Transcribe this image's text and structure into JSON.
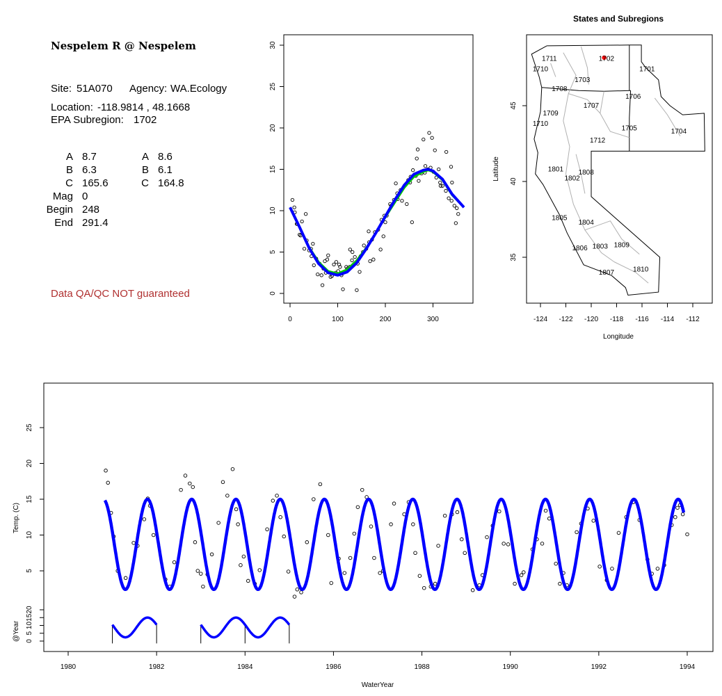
{
  "info": {
    "site_title": "Nespelem R @ Nespelem",
    "site_label": "Site:",
    "site": "51A070",
    "agency_label": "Agency:",
    "agency": "WA.Ecology",
    "location_label": "Location:",
    "location": "-118.9814 , 48.1668",
    "subregion_label": "EPA Subregion:",
    "subregion": "1702",
    "params_left": [
      {
        "name": "A",
        "value": "8.7"
      },
      {
        "name": "B",
        "value": "6.3"
      },
      {
        "name": "C",
        "value": "165.6"
      },
      {
        "name": "Mag",
        "value": "0"
      },
      {
        "name": "Begin",
        "value": "248"
      },
      {
        "name": "End",
        "value": "291.4"
      }
    ],
    "params_right": [
      {
        "name": "A",
        "value": "8.6"
      },
      {
        "name": "B",
        "value": "6.1"
      },
      {
        "name": "C",
        "value": "164.8"
      }
    ],
    "qa_note": "Data QA/QC NOT guaranteed"
  },
  "colors": {
    "fit": "#0000ff",
    "fit_alt": "#00cc00",
    "site_marker": "#ff0000",
    "qa_text": "#b03030",
    "boundary": "#000000",
    "subregion_lines": "#b0b0b0"
  },
  "chart_data": [
    {
      "type": "scatter",
      "title": "",
      "xlabel": "",
      "ylabel": "",
      "xlim": [
        0,
        365
      ],
      "ylim": [
        0,
        30
      ],
      "x_ticks": [
        0,
        100,
        200,
        300
      ],
      "y_ticks": [
        0,
        5,
        10,
        15,
        20,
        25,
        30
      ],
      "grid": false,
      "series": [
        {
          "kind": "points",
          "x": [
            5,
            10,
            15,
            20,
            25,
            30,
            35,
            40,
            45,
            50,
            55,
            62,
            66,
            70,
            75,
            80,
            85,
            92,
            97,
            101,
            105,
            109,
            113,
            120,
            125,
            130,
            136,
            142,
            148,
            155,
            160,
            166,
            172,
            178,
            185,
            192,
            198,
            203,
            212,
            218,
            225,
            232,
            240,
            248,
            253,
            258,
            264,
            270,
            276,
            283,
            289,
            295,
            301,
            307,
            315,
            320,
            327,
            333,
            339,
            345,
            350,
            353,
            9,
            22,
            33,
            48,
            58,
            68,
            78,
            88,
            103,
            111,
            118,
            131,
            140,
            153,
            165,
            175,
            190,
            200,
            210,
            222,
            235,
            245,
            256,
            268,
            280,
            292,
            304,
            316,
            328,
            340,
            348,
            14,
            44,
            73,
            96,
            108,
            126,
            146,
            168,
            196,
            226,
            252,
            266,
            284,
            298,
            312,
            338
          ],
          "y": [
            11.3,
            9.8,
            8.4,
            7.1,
            8.7,
            5.4,
            6.4,
            5.2,
            4.5,
            3.4,
            4.2,
            3.6,
            2.2,
            3.0,
            2.5,
            4.6,
            2.0,
            3.5,
            3.8,
            2.7,
            3.2,
            2.4,
            2.6,
            3.0,
            3.2,
            4.0,
            4.4,
            3.6,
            4.5,
            5.8,
            5.4,
            6.2,
            6.5,
            7.4,
            7.7,
            8.9,
            9.4,
            9.4,
            10.6,
            11.3,
            12.1,
            12.5,
            13.0,
            13.7,
            14.1,
            14.9,
            14.2,
            13.6,
            14.5,
            14.6,
            15.0,
            15.2,
            14.7,
            14.0,
            13.4,
            13.0,
            12.4,
            11.5,
            11.2,
            10.6,
            10.3,
            9.6,
            10.4,
            7.0,
            9.6,
            6.0,
            2.3,
            1.0,
            4.1,
            2.1,
            3.5,
            0.5,
            3.2,
            5.0,
            0.4,
            5.0,
            7.5,
            4.1,
            5.3,
            8.6,
            10.8,
            13.3,
            11.2,
            10.8,
            8.6,
            17.4,
            18.6,
            19.4,
            17.3,
            13.0,
            17.1,
            13.4,
            8.5,
            8.4,
            5.4,
            3.9,
            2.5,
            2.2,
            5.3,
            2.6,
            3.9,
            6.9,
            11.4,
            13.4,
            16.3,
            15.4,
            18.8,
            15.0,
            15.3
          ]
        },
        {
          "kind": "line",
          "name": "",
          "color": "#00cc00",
          "x": [
            0,
            20,
            40,
            60,
            80,
            100,
            120,
            140,
            160,
            180,
            200,
            220,
            240,
            260,
            280,
            290,
            300,
            320,
            340,
            365
          ],
          "y": [
            10.4,
            8.0,
            5.6,
            3.8,
            2.7,
            2.4,
            2.9,
            4.0,
            5.5,
            7.3,
            9.2,
            11.0,
            12.8,
            14.1,
            14.7,
            14.9,
            14.7,
            13.7,
            11.9,
            10.4
          ]
        },
        {
          "kind": "line",
          "name": "",
          "color": "#0000ff",
          "x": [
            0,
            20,
            40,
            60,
            80,
            100,
            120,
            140,
            160,
            180,
            200,
            220,
            240,
            260,
            280,
            290,
            300,
            320,
            340,
            365
          ],
          "y": [
            10.4,
            8.0,
            5.5,
            3.6,
            2.5,
            2.2,
            2.6,
            3.7,
            5.4,
            7.3,
            9.3,
            11.3,
            13.1,
            14.4,
            14.9,
            15.0,
            14.8,
            13.8,
            12.0,
            10.4
          ]
        }
      ]
    },
    {
      "type": "map",
      "title": "States and Subregions",
      "xlabel": "Longitude",
      "ylabel": "Latitude",
      "xlim": [
        -125.2,
        -110.5
      ],
      "ylim": [
        32.0,
        49.5
      ],
      "x_ticks": [
        -124,
        -122,
        -120,
        -118,
        -116,
        -114,
        -112
      ],
      "y_ticks": [
        35,
        40,
        45
      ],
      "grid": false,
      "site_marker": {
        "lon": -118.98,
        "lat": 48.17
      },
      "region_labels": [
        {
          "label": "1711",
          "lon": -123.3,
          "lat": 48.1
        },
        {
          "label": "1702",
          "lon": -118.8,
          "lat": 48.1
        },
        {
          "label": "1701",
          "lon": -115.6,
          "lat": 47.4
        },
        {
          "label": "1710",
          "lon": -124.0,
          "lat": 47.4
        },
        {
          "label": "1703",
          "lon": -120.7,
          "lat": 46.7
        },
        {
          "label": "1708",
          "lon": -122.5,
          "lat": 46.1
        },
        {
          "label": "1706",
          "lon": -116.7,
          "lat": 45.6
        },
        {
          "label": "1707",
          "lon": -120.0,
          "lat": 45.0
        },
        {
          "label": "1709",
          "lon": -123.2,
          "lat": 44.5
        },
        {
          "label": "1710",
          "lon": -124.0,
          "lat": 43.8
        },
        {
          "label": "1705",
          "lon": -117.0,
          "lat": 43.5
        },
        {
          "label": "1704",
          "lon": -113.1,
          "lat": 43.3
        },
        {
          "label": "1712",
          "lon": -119.5,
          "lat": 42.7
        },
        {
          "label": "1801",
          "lon": -122.8,
          "lat": 40.8
        },
        {
          "label": "1808",
          "lon": -120.4,
          "lat": 40.6
        },
        {
          "label": "1802",
          "lon": -121.5,
          "lat": 40.2
        },
        {
          "label": "1805",
          "lon": -122.5,
          "lat": 37.6
        },
        {
          "label": "1804",
          "lon": -120.4,
          "lat": 37.3
        },
        {
          "label": "1809",
          "lon": -117.6,
          "lat": 35.8
        },
        {
          "label": "1806",
          "lon": -120.9,
          "lat": 35.6
        },
        {
          "label": "1803",
          "lon": -119.3,
          "lat": 35.7
        },
        {
          "label": "1810",
          "lon": -116.1,
          "lat": 34.2
        },
        {
          "label": "1807",
          "lon": -118.8,
          "lat": 34.0
        }
      ]
    },
    {
      "type": "line",
      "title": "",
      "xlabel": "WaterYear",
      "ylabel": "Temp. (C)",
      "xlim": [
        1979.5,
        1994.5
      ],
      "ylim": [
        0,
        30
      ],
      "x_ticks": [
        1980,
        1982,
        1984,
        1986,
        1988,
        1990,
        1992,
        1994
      ],
      "y_ticks": [
        5,
        10,
        15,
        20,
        25
      ],
      "grid": false,
      "fit_start": 1980.83,
      "fit_end": 1993.92,
      "fit_mean": 8.7,
      "fit_amplitude": 6.3,
      "fit_peak_dayofyear": 290,
      "series": [
        {
          "kind": "points",
          "x": [
            1980.85,
            1980.9,
            1980.97,
            1981.03,
            1981.12,
            1981.3,
            1981.48,
            1981.57,
            1981.72,
            1981.8,
            1981.85,
            1981.93,
            1982.2,
            1982.3,
            1982.4,
            1982.55,
            1982.65,
            1982.75,
            1982.82,
            1982.87,
            1982.93,
            1983.0,
            1983.05,
            1983.15,
            1983.25,
            1983.4,
            1983.5,
            1983.6,
            1983.72,
            1983.8,
            1983.84,
            1983.9,
            1983.97,
            1984.07,
            1984.22,
            1984.33,
            1984.5,
            1984.63,
            1984.72,
            1984.8,
            1984.88,
            1984.98,
            1985.12,
            1985.18,
            1985.27,
            1985.4,
            1985.55,
            1985.7,
            1985.88,
            1985.95,
            1986.12,
            1986.25,
            1986.38,
            1986.47,
            1986.55,
            1986.65,
            1986.75,
            1986.85,
            1986.92,
            1987.05,
            1987.12,
            1987.3,
            1987.37,
            1987.6,
            1987.7,
            1987.8,
            1987.85,
            1987.95,
            1988.05,
            1988.2,
            1988.3,
            1988.37,
            1988.52,
            1988.68,
            1988.8,
            1988.9,
            1988.97,
            1989.15,
            1989.3,
            1989.37,
            1989.47,
            1989.6,
            1989.75,
            1989.85,
            1989.95,
            1990.1,
            1990.25,
            1990.3,
            1990.5,
            1990.6,
            1990.72,
            1990.8,
            1990.88,
            1991.03,
            1991.12,
            1991.2,
            1991.28,
            1991.5,
            1991.6,
            1991.75,
            1991.88,
            1992.02,
            1992.18,
            1992.3,
            1992.45,
            1992.62,
            1992.78,
            1992.92,
            1993.1,
            1993.2,
            1993.33,
            1993.48,
            1993.65,
            1993.73,
            1993.78,
            1993.84,
            1993.9,
            1994.0
          ],
          "y": [
            19.0,
            17.3,
            13.1,
            9.8,
            5.0,
            4.0,
            8.9,
            8.5,
            12.2,
            15.1,
            14.1,
            10.0,
            3.8,
            2.8,
            6.2,
            16.3,
            18.3,
            17.2,
            16.7,
            9.0,
            5.0,
            4.6,
            2.8,
            4.5,
            7.3,
            11.7,
            17.4,
            15.5,
            19.2,
            13.6,
            11.5,
            5.8,
            7.0,
            3.6,
            3.2,
            5.1,
            10.8,
            14.8,
            15.5,
            12.5,
            9.8,
            4.9,
            1.4,
            2.4,
            2.0,
            9.0,
            15.0,
            17.1,
            10.0,
            3.3,
            6.7,
            4.7,
            6.8,
            10.2,
            13.9,
            16.3,
            15.3,
            11.2,
            6.8,
            4.7,
            5.0,
            11.5,
            14.4,
            12.9,
            14.6,
            11.5,
            7.5,
            4.3,
            2.6,
            2.8,
            3.2,
            8.5,
            12.7,
            12.9,
            13.2,
            9.4,
            7.5,
            2.3,
            3.0,
            4.4,
            9.7,
            11.3,
            13.3,
            8.8,
            8.7,
            3.2,
            4.4,
            4.8,
            8.0,
            9.4,
            8.8,
            13.4,
            12.3,
            6.0,
            3.2,
            4.7,
            3.0,
            10.4,
            11.6,
            13.7,
            12.0,
            5.6,
            3.7,
            5.3,
            10.3,
            12.5,
            14.6,
            12.1,
            6.6,
            4.6,
            5.3,
            5.8,
            11.4,
            12.5,
            13.8,
            14.2,
            12.9,
            10.1
          ]
        }
      ]
    },
    {
      "type": "line",
      "title": "",
      "xlabel": "",
      "ylabel": "@Year",
      "xlim": [
        1979.5,
        1994.5
      ],
      "ylim": [
        -3,
        25
      ],
      "y_ticks": [
        0,
        5,
        10,
        15,
        20
      ],
      "grid": false,
      "segments": [
        [
          1981.0,
          1982.0
        ],
        [
          1983.0,
          1985.0
        ]
      ]
    }
  ]
}
